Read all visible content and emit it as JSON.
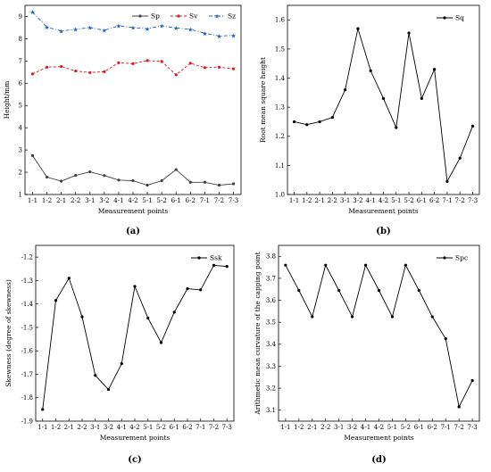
{
  "categories": [
    "1-1",
    "1-2",
    "2-1",
    "2-2",
    "3-1",
    "3-2",
    "4-1",
    "4-2",
    "5-1",
    "5-2",
    "6-1",
    "6-2",
    "7-1",
    "7-2",
    "7-3"
  ],
  "chart_data": [
    {
      "panel": "(a)",
      "type": "line",
      "xlabel": "Measurement points",
      "ylabel": "Height/mm",
      "ylim": [
        1,
        9.5
      ],
      "yticks": [
        1,
        2,
        3,
        4,
        5,
        6,
        7,
        8,
        9
      ],
      "legend_position": "top-right",
      "series": [
        {
          "name": "Sp",
          "color": "#404040",
          "style": "solid",
          "marker": "dot",
          "values": [
            2.75,
            1.78,
            1.6,
            1.86,
            2.02,
            1.85,
            1.65,
            1.62,
            1.42,
            1.62,
            2.12,
            1.55,
            1.55,
            1.42,
            1.48
          ]
        },
        {
          "name": "Sv",
          "color": "#e31a1c",
          "style": "dashed",
          "marker": "dot",
          "values": [
            6.42,
            6.72,
            6.75,
            6.55,
            6.48,
            6.52,
            6.92,
            6.88,
            7.02,
            6.98,
            6.38,
            6.9,
            6.7,
            6.72,
            6.65
          ]
        },
        {
          "name": "Sz",
          "color": "#1f5fbf",
          "style": "dashdot",
          "marker": "star",
          "values": [
            9.2,
            8.52,
            8.35,
            8.42,
            8.5,
            8.38,
            8.58,
            8.5,
            8.45,
            8.58,
            8.48,
            8.42,
            8.25,
            8.12,
            8.15
          ]
        }
      ]
    },
    {
      "panel": "(b)",
      "type": "line",
      "xlabel": "Measurement points",
      "ylabel": "Root mean square height",
      "ylim": [
        1.0,
        1.65
      ],
      "yticks": [
        1.0,
        1.1,
        1.2,
        1.3,
        1.4,
        1.5,
        1.6
      ],
      "legend_position": "top-right",
      "series": [
        {
          "name": "Sq",
          "color": "#000000",
          "style": "solid",
          "marker": "dot",
          "values": [
            1.25,
            1.24,
            1.25,
            1.265,
            1.36,
            1.57,
            1.425,
            1.33,
            1.23,
            1.555,
            1.33,
            1.43,
            1.045,
            1.125,
            1.235
          ]
        }
      ]
    },
    {
      "panel": "(c)",
      "type": "line",
      "xlabel": "Measurement points",
      "ylabel": "Skewness (degree of skewness)",
      "ylim": [
        -1.9,
        -1.15
      ],
      "yticks": [
        -1.9,
        -1.8,
        -1.7,
        -1.6,
        -1.5,
        -1.4,
        -1.3,
        -1.2
      ],
      "legend_position": "top-right",
      "series": [
        {
          "name": "Ssk",
          "color": "#000000",
          "style": "solid",
          "marker": "dot",
          "values": [
            -1.85,
            -1.385,
            -1.29,
            -1.455,
            -1.705,
            -1.765,
            -1.655,
            -1.325,
            -1.46,
            -1.565,
            -1.435,
            -1.335,
            -1.34,
            -1.235,
            -1.24
          ]
        }
      ]
    },
    {
      "panel": "(d)",
      "type": "line",
      "xlabel": "Measurement points",
      "ylabel": "Arithmetic mean curvature of the capping point",
      "ylim": [
        3.05,
        3.85
      ],
      "yticks": [
        3.1,
        3.2,
        3.3,
        3.4,
        3.5,
        3.6,
        3.7,
        3.8
      ],
      "legend_position": "top-right",
      "series": [
        {
          "name": "Spc",
          "color": "#000000",
          "style": "solid",
          "marker": "dot",
          "values": [
            3.76,
            3.645,
            3.525,
            3.76,
            3.645,
            3.525,
            3.76,
            3.645,
            3.525,
            3.76,
            3.645,
            3.525,
            3.425,
            3.115,
            3.235
          ]
        }
      ]
    }
  ]
}
